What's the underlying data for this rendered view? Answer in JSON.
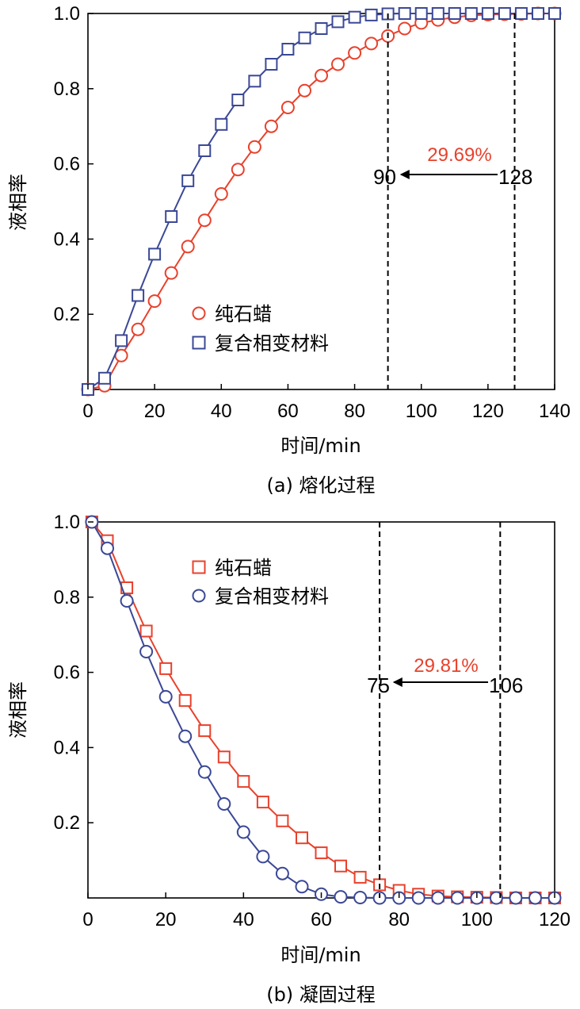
{
  "chart_data": [
    {
      "type": "line",
      "caption": "(a) 熔化过程",
      "xlabel": "时间/min",
      "ylabel": "液相率",
      "xlim": [
        0,
        140
      ],
      "ylim": [
        0,
        1.0
      ],
      "xticks": [
        "0",
        "20",
        "40",
        "60",
        "80",
        "100",
        "120",
        "140"
      ],
      "yticks": [
        "0.2",
        "0.4",
        "0.6",
        "0.8",
        "1.0"
      ],
      "ytick_values": [
        0.2,
        0.4,
        0.6,
        0.8,
        1.0
      ],
      "legend_position": "bottom-center",
      "colors": {
        "red": "#e8412c",
        "blue": "#3b4896"
      },
      "series": [
        {
          "name": "纯石蜡",
          "marker": "circle",
          "color": "#e8412c",
          "x": [
            0,
            5,
            10,
            15,
            20,
            25,
            30,
            35,
            40,
            45,
            50,
            55,
            60,
            65,
            70,
            75,
            80,
            85,
            90,
            95,
            100,
            105,
            110,
            115,
            120,
            125,
            130,
            135,
            140
          ],
          "values": [
            0.0,
            0.01,
            0.09,
            0.16,
            0.235,
            0.31,
            0.38,
            0.45,
            0.52,
            0.585,
            0.645,
            0.7,
            0.75,
            0.795,
            0.835,
            0.865,
            0.895,
            0.92,
            0.94,
            0.96,
            0.975,
            0.983,
            0.99,
            0.995,
            0.997,
            0.998,
            0.999,
            1.0,
            1.0
          ]
        },
        {
          "name": "复合相变材料",
          "marker": "square",
          "color": "#3b4896",
          "x": [
            0,
            5,
            10,
            15,
            20,
            25,
            30,
            35,
            40,
            45,
            50,
            55,
            60,
            65,
            70,
            75,
            80,
            85,
            90,
            95,
            100,
            105,
            110,
            115,
            120,
            125,
            130,
            135,
            140
          ],
          "values": [
            0.0,
            0.03,
            0.13,
            0.25,
            0.36,
            0.46,
            0.555,
            0.635,
            0.705,
            0.77,
            0.82,
            0.865,
            0.905,
            0.935,
            0.96,
            0.978,
            0.99,
            0.996,
            0.999,
            1.0,
            1.0,
            1.0,
            1.0,
            1.0,
            1.0,
            1.0,
            1.0,
            1.0,
            1.0
          ]
        }
      ],
      "vlines": [
        90,
        128
      ],
      "annotation": {
        "from": "128",
        "to": "90",
        "percent": "29.69%"
      }
    },
    {
      "type": "line",
      "caption": "(b) 凝固过程",
      "xlabel": "时间/min",
      "ylabel": "液相率",
      "xlim": [
        0,
        120
      ],
      "ylim": [
        0,
        1.0
      ],
      "xticks": [
        "0",
        "20",
        "40",
        "60",
        "80",
        "100",
        "120"
      ],
      "yticks": [
        "0.2",
        "0.4",
        "0.6",
        "0.8",
        "1.0"
      ],
      "ytick_values": [
        0.2,
        0.4,
        0.6,
        0.8,
        1.0
      ],
      "legend_position": "top-center",
      "colors": {
        "red": "#e8412c",
        "blue": "#3b4896"
      },
      "series": [
        {
          "name": "纯石蜡",
          "marker": "square",
          "color": "#e8412c",
          "x": [
            1,
            5,
            10,
            15,
            20,
            25,
            30,
            35,
            40,
            45,
            50,
            55,
            60,
            65,
            70,
            75,
            80,
            85,
            90,
            95,
            100,
            105,
            110,
            115,
            120
          ],
          "values": [
            1.0,
            0.95,
            0.825,
            0.71,
            0.61,
            0.525,
            0.445,
            0.375,
            0.31,
            0.255,
            0.205,
            0.16,
            0.12,
            0.085,
            0.055,
            0.035,
            0.02,
            0.01,
            0.005,
            0.003,
            0.002,
            0.001,
            0.0,
            0.0,
            0.0
          ]
        },
        {
          "name": "复合相变材料",
          "marker": "circle",
          "color": "#3b4896",
          "x": [
            1,
            5,
            10,
            15,
            20,
            25,
            30,
            35,
            40,
            45,
            50,
            55,
            60,
            65,
            70,
            75,
            80,
            85,
            90,
            95,
            100,
            105,
            110,
            115,
            120
          ],
          "values": [
            1.0,
            0.93,
            0.79,
            0.655,
            0.535,
            0.43,
            0.335,
            0.25,
            0.175,
            0.11,
            0.065,
            0.03,
            0.01,
            0.003,
            0.001,
            0.0,
            0.0,
            0.0,
            0.0,
            0.0,
            0.0,
            0.0,
            0.0,
            0.0,
            0.0
          ]
        }
      ],
      "vlines": [
        75,
        106
      ],
      "annotation": {
        "from": "106",
        "to": "75",
        "percent": "29.81%"
      }
    }
  ]
}
